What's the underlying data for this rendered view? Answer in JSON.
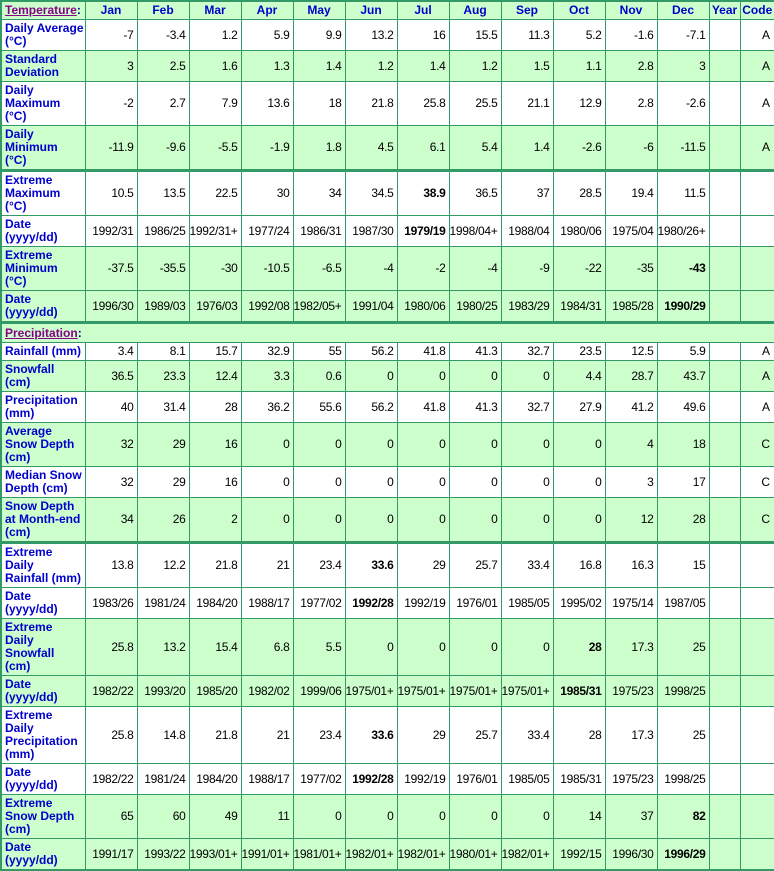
{
  "colors": {
    "cell_green": "#ccffcc",
    "border_green": "#339966",
    "label_blue": "#0000cc",
    "link_purple": "#880088",
    "colon_navy": "#000080"
  },
  "temperature_header": {
    "link_text": "Temperature",
    "suffix": ":"
  },
  "precipitation_header": {
    "link_text": "Precipitation",
    "suffix": ":"
  },
  "columns": {
    "months": [
      "Jan",
      "Feb",
      "Mar",
      "Apr",
      "May",
      "Jun",
      "Jul",
      "Aug",
      "Sep",
      "Oct",
      "Nov",
      "Dec"
    ],
    "year_label": "Year",
    "code_label": "Code"
  },
  "rows": [
    {
      "type": "data",
      "name": "daily-average",
      "label": [
        "Daily Average",
        "(°C)"
      ],
      "values": [
        "-7",
        "-3.4",
        "1.2",
        "5.9",
        "9.9",
        "13.2",
        "16",
        "15.5",
        "11.3",
        "5.2",
        "-1.6",
        "-7.1"
      ],
      "year": "",
      "code": "A",
      "bg": "white",
      "bold": [],
      "section_top": false
    },
    {
      "type": "data",
      "name": "standard-deviation",
      "label": [
        "Standard",
        "Deviation"
      ],
      "values": [
        "3",
        "2.5",
        "1.6",
        "1.3",
        "1.4",
        "1.2",
        "1.4",
        "1.2",
        "1.5",
        "1.1",
        "2.8",
        "3"
      ],
      "year": "",
      "code": "A",
      "bg": "green",
      "bold": [],
      "section_top": false
    },
    {
      "type": "data",
      "name": "daily-maximum",
      "label": [
        "Daily",
        "Maximum",
        "(°C)"
      ],
      "values": [
        "-2",
        "2.7",
        "7.9",
        "13.6",
        "18",
        "21.8",
        "25.8",
        "25.5",
        "21.1",
        "12.9",
        "2.8",
        "-2.6"
      ],
      "year": "",
      "code": "A",
      "bg": "white",
      "bold": [],
      "section_top": false
    },
    {
      "type": "data",
      "name": "daily-minimum",
      "label": [
        "Daily",
        "Minimum",
        "(°C)"
      ],
      "values": [
        "-11.9",
        "-9.6",
        "-5.5",
        "-1.9",
        "1.8",
        "4.5",
        "6.1",
        "5.4",
        "1.4",
        "-2.6",
        "-6",
        "-11.5"
      ],
      "year": "",
      "code": "A",
      "bg": "green",
      "bold": [],
      "section_top": false
    },
    {
      "type": "data",
      "name": "extreme-maximum",
      "label": [
        "Extreme",
        "Maximum",
        "(°C)"
      ],
      "values": [
        "10.5",
        "13.5",
        "22.5",
        "30",
        "34",
        "34.5",
        "38.9",
        "36.5",
        "37",
        "28.5",
        "19.4",
        "11.5"
      ],
      "year": "",
      "code": "",
      "bg": "white",
      "bold": [
        6
      ],
      "section_top": true
    },
    {
      "type": "data",
      "name": "extreme-maximum-date",
      "label": [
        "Date",
        "(yyyy/dd)"
      ],
      "values": [
        "1992/31",
        "1986/25",
        "1992/31+",
        "1977/24",
        "1986/31",
        "1987/30",
        "1979/19",
        "1998/04+",
        "1988/04",
        "1980/06",
        "1975/04",
        "1980/26+"
      ],
      "year": "",
      "code": "",
      "bg": "white",
      "bold": [
        6
      ],
      "section_top": false
    },
    {
      "type": "data",
      "name": "extreme-minimum",
      "label": [
        "Extreme",
        "Minimum",
        "(°C)"
      ],
      "values": [
        "-37.5",
        "-35.5",
        "-30",
        "-10.5",
        "-6.5",
        "-4",
        "-2",
        "-4",
        "-9",
        "-22",
        "-35",
        "-43"
      ],
      "year": "",
      "code": "",
      "bg": "green",
      "bold": [
        11
      ],
      "section_top": false
    },
    {
      "type": "data",
      "name": "extreme-minimum-date",
      "label": [
        "Date",
        "(yyyy/dd)"
      ],
      "values": [
        "1996/30",
        "1989/03",
        "1976/03",
        "1992/08",
        "1982/05+",
        "1991/04",
        "1980/06",
        "1980/25",
        "1983/29",
        "1984/31",
        "1985/28",
        "1990/29"
      ],
      "year": "",
      "code": "",
      "bg": "green",
      "bold": [
        11
      ],
      "section_top": false
    },
    {
      "type": "section",
      "name": "precipitation-section",
      "bg": "green",
      "section_top": true
    },
    {
      "type": "data",
      "name": "rainfall",
      "label": [
        "Rainfall (mm)"
      ],
      "values": [
        "3.4",
        "8.1",
        "15.7",
        "32.9",
        "55",
        "56.2",
        "41.8",
        "41.3",
        "32.7",
        "23.5",
        "12.5",
        "5.9"
      ],
      "year": "",
      "code": "A",
      "bg": "white",
      "bold": [],
      "section_top": false
    },
    {
      "type": "data",
      "name": "snowfall",
      "label": [
        "Snowfall",
        "(cm)"
      ],
      "values": [
        "36.5",
        "23.3",
        "12.4",
        "3.3",
        "0.6",
        "0",
        "0",
        "0",
        "0",
        "4.4",
        "28.7",
        "43.7"
      ],
      "year": "",
      "code": "A",
      "bg": "green",
      "bold": [],
      "section_top": false
    },
    {
      "type": "data",
      "name": "precipitation",
      "label": [
        "Precipitation",
        "(mm)"
      ],
      "values": [
        "40",
        "31.4",
        "28",
        "36.2",
        "55.6",
        "56.2",
        "41.8",
        "41.3",
        "32.7",
        "27.9",
        "41.2",
        "49.6"
      ],
      "year": "",
      "code": "A",
      "bg": "white",
      "bold": [],
      "section_top": false
    },
    {
      "type": "data",
      "name": "average-snow-depth",
      "label": [
        "Average",
        "Snow Depth",
        "(cm)"
      ],
      "values": [
        "32",
        "29",
        "16",
        "0",
        "0",
        "0",
        "0",
        "0",
        "0",
        "0",
        "4",
        "18"
      ],
      "year": "",
      "code": "C",
      "bg": "green",
      "bold": [],
      "section_top": false
    },
    {
      "type": "data",
      "name": "median-snow-depth",
      "label": [
        "Median Snow",
        "Depth (cm)"
      ],
      "values": [
        "32",
        "29",
        "16",
        "0",
        "0",
        "0",
        "0",
        "0",
        "0",
        "0",
        "3",
        "17"
      ],
      "year": "",
      "code": "C",
      "bg": "white",
      "bold": [],
      "section_top": false
    },
    {
      "type": "data",
      "name": "snow-depth-month-end",
      "label": [
        "Snow Depth",
        "at Month-end",
        "(cm)"
      ],
      "values": [
        "34",
        "26",
        "2",
        "0",
        "0",
        "0",
        "0",
        "0",
        "0",
        "0",
        "12",
        "28"
      ],
      "year": "",
      "code": "C",
      "bg": "green",
      "bold": [],
      "section_top": false
    },
    {
      "type": "data",
      "name": "extreme-daily-rainfall",
      "label": [
        "Extreme Daily",
        "Rainfall (mm)"
      ],
      "values": [
        "13.8",
        "12.2",
        "21.8",
        "21",
        "23.4",
        "33.6",
        "29",
        "25.7",
        "33.4",
        "16.8",
        "16.3",
        "15"
      ],
      "year": "",
      "code": "",
      "bg": "white",
      "bold": [
        5
      ],
      "section_top": true
    },
    {
      "type": "data",
      "name": "extreme-daily-rainfall-date",
      "label": [
        "Date",
        "(yyyy/dd)"
      ],
      "values": [
        "1983/26",
        "1981/24",
        "1984/20",
        "1988/17",
        "1977/02",
        "1992/28",
        "1992/19",
        "1976/01",
        "1985/05",
        "1995/02",
        "1975/14",
        "1987/05"
      ],
      "year": "",
      "code": "",
      "bg": "white",
      "bold": [
        5
      ],
      "section_top": false
    },
    {
      "type": "data",
      "name": "extreme-daily-snowfall",
      "label": [
        "Extreme Daily",
        "Snowfall",
        "(cm)"
      ],
      "values": [
        "25.8",
        "13.2",
        "15.4",
        "6.8",
        "5.5",
        "0",
        "0",
        "0",
        "0",
        "28",
        "17.3",
        "25"
      ],
      "year": "",
      "code": "",
      "bg": "green",
      "bold": [
        9
      ],
      "section_top": false
    },
    {
      "type": "data",
      "name": "extreme-daily-snowfall-date",
      "label": [
        "Date",
        "(yyyy/dd)"
      ],
      "values": [
        "1982/22",
        "1993/20",
        "1985/20",
        "1982/02",
        "1999/06",
        "1975/01+",
        "1975/01+",
        "1975/01+",
        "1975/01+",
        "1985/31",
        "1975/23",
        "1998/25"
      ],
      "year": "",
      "code": "",
      "bg": "green",
      "bold": [
        9
      ],
      "section_top": false
    },
    {
      "type": "data",
      "name": "extreme-daily-precipitation",
      "label": [
        "Extreme Daily",
        "Precipitation",
        "(mm)"
      ],
      "values": [
        "25.8",
        "14.8",
        "21.8",
        "21",
        "23.4",
        "33.6",
        "29",
        "25.7",
        "33.4",
        "28",
        "17.3",
        "25"
      ],
      "year": "",
      "code": "",
      "bg": "white",
      "bold": [
        5
      ],
      "section_top": false
    },
    {
      "type": "data",
      "name": "extreme-daily-precipitation-date",
      "label": [
        "Date",
        "(yyyy/dd)"
      ],
      "values": [
        "1982/22",
        "1981/24",
        "1984/20",
        "1988/17",
        "1977/02",
        "1992/28",
        "1992/19",
        "1976/01",
        "1985/05",
        "1985/31",
        "1975/23",
        "1998/25"
      ],
      "year": "",
      "code": "",
      "bg": "white",
      "bold": [
        5
      ],
      "section_top": false
    },
    {
      "type": "data",
      "name": "extreme-snow-depth",
      "label": [
        "Extreme",
        "Snow Depth",
        "(cm)"
      ],
      "values": [
        "65",
        "60",
        "49",
        "11",
        "0",
        "0",
        "0",
        "0",
        "0",
        "14",
        "37",
        "82"
      ],
      "year": "",
      "code": "",
      "bg": "green",
      "bold": [
        11
      ],
      "section_top": false
    },
    {
      "type": "data",
      "name": "extreme-snow-depth-date",
      "label": [
        "Date",
        "(yyyy/dd)"
      ],
      "values": [
        "1991/17",
        "1993/22",
        "1993/01+",
        "1991/01+",
        "1981/01+",
        "1982/01+",
        "1982/01+",
        "1980/01+",
        "1982/01+",
        "1992/15",
        "1996/30",
        "1996/29"
      ],
      "year": "",
      "code": "",
      "bg": "green",
      "bold": [
        11
      ],
      "section_top": false
    }
  ]
}
